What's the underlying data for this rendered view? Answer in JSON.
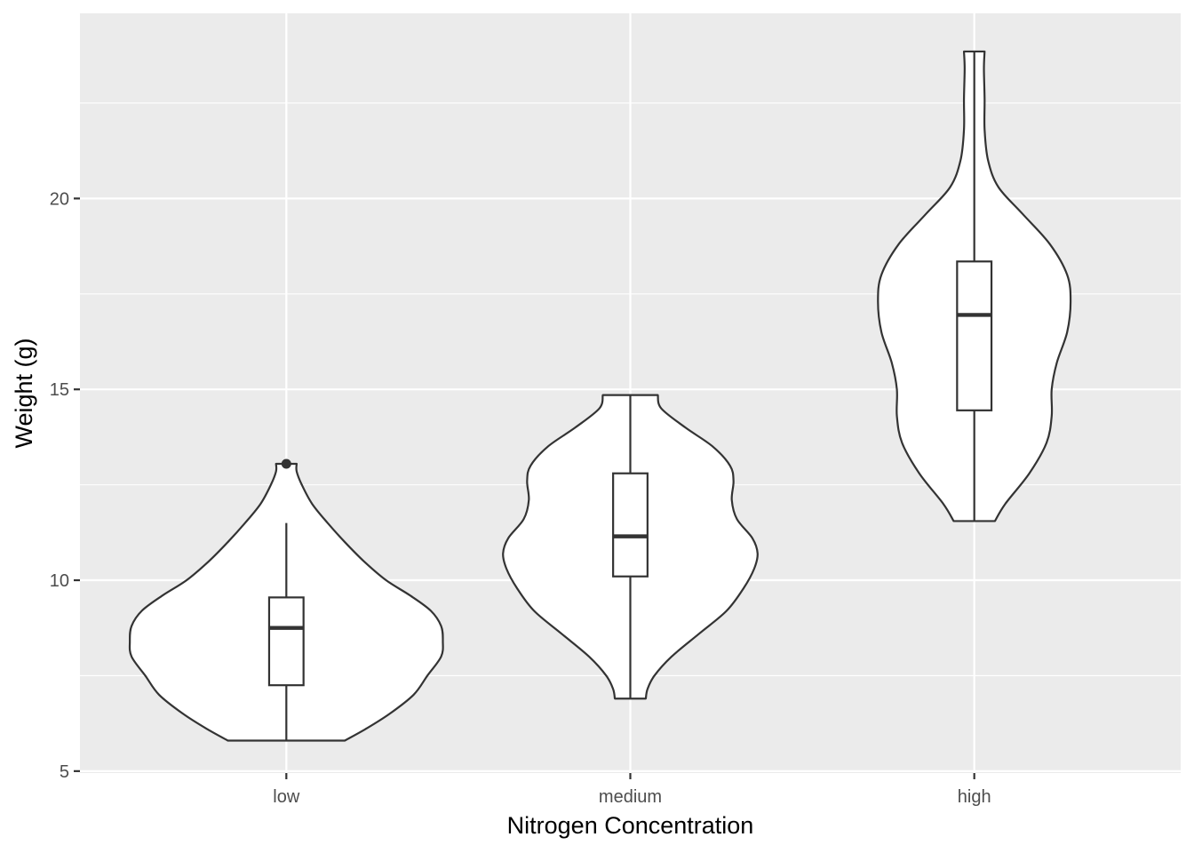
{
  "chart_data": {
    "type": "violin",
    "title": "",
    "xlabel": "Nitrogen Concentration",
    "ylabel": "Weight (g)",
    "categories": [
      "low",
      "medium",
      "high"
    ],
    "ylim": [
      4.95,
      24.85
    ],
    "yticks": [
      5,
      10,
      15,
      20
    ],
    "grid": true,
    "legend": "none",
    "colors": {
      "panel": "#ebebeb",
      "grid": "#ffffff",
      "outline": "#333333",
      "fill": "#ffffff",
      "tick_text": "#4d4d4d"
    },
    "series": [
      {
        "category": "low",
        "min": 5.8,
        "max": 13.05,
        "q1": 7.25,
        "median": 8.75,
        "q3": 9.55,
        "whisker_low": 5.8,
        "whisker_high": 11.5,
        "outliers": [
          13.05
        ],
        "violin_max_halfwidth": 0.45,
        "density_profile": [
          [
            5.8,
            0.17
          ],
          [
            6.1,
            0.23
          ],
          [
            6.5,
            0.3
          ],
          [
            7.0,
            0.37
          ],
          [
            7.5,
            0.41
          ],
          [
            8.0,
            0.45
          ],
          [
            8.4,
            0.455
          ],
          [
            8.8,
            0.45
          ],
          [
            9.2,
            0.42
          ],
          [
            9.6,
            0.36
          ],
          [
            10.0,
            0.29
          ],
          [
            10.5,
            0.225
          ],
          [
            11.0,
            0.17
          ],
          [
            11.5,
            0.12
          ],
          [
            12.0,
            0.075
          ],
          [
            12.5,
            0.045
          ],
          [
            12.85,
            0.03
          ],
          [
            13.05,
            0.03
          ]
        ]
      },
      {
        "category": "medium",
        "min": 6.9,
        "max": 14.85,
        "q1": 10.1,
        "median": 11.15,
        "q3": 12.8,
        "whisker_low": 6.9,
        "whisker_high": 14.85,
        "outliers": [],
        "violin_max_halfwidth": 0.37,
        "density_profile": [
          [
            6.9,
            0.045
          ],
          [
            7.15,
            0.05
          ],
          [
            7.5,
            0.07
          ],
          [
            8.0,
            0.12
          ],
          [
            8.6,
            0.2
          ],
          [
            9.2,
            0.28
          ],
          [
            9.8,
            0.33
          ],
          [
            10.3,
            0.36
          ],
          [
            10.7,
            0.37
          ],
          [
            11.1,
            0.355
          ],
          [
            11.6,
            0.31
          ],
          [
            12.1,
            0.295
          ],
          [
            12.6,
            0.3
          ],
          [
            13.0,
            0.29
          ],
          [
            13.5,
            0.24
          ],
          [
            14.0,
            0.16
          ],
          [
            14.5,
            0.09
          ],
          [
            14.85,
            0.08
          ]
        ]
      },
      {
        "category": "high",
        "min": 11.55,
        "max": 23.85,
        "q1": 14.45,
        "median": 16.95,
        "q3": 18.35,
        "whisker_low": 11.55,
        "whisker_high": 23.85,
        "outliers": [],
        "violin_max_halfwidth": 0.28,
        "density_profile": [
          [
            11.55,
            0.06
          ],
          [
            12.0,
            0.09
          ],
          [
            12.8,
            0.16
          ],
          [
            13.6,
            0.21
          ],
          [
            14.3,
            0.225
          ],
          [
            15.0,
            0.225
          ],
          [
            15.7,
            0.24
          ],
          [
            16.5,
            0.27
          ],
          [
            17.3,
            0.28
          ],
          [
            18.0,
            0.27
          ],
          [
            18.8,
            0.22
          ],
          [
            19.6,
            0.14
          ],
          [
            20.3,
            0.07
          ],
          [
            21.0,
            0.04
          ],
          [
            21.8,
            0.03
          ],
          [
            22.6,
            0.03
          ],
          [
            23.4,
            0.028
          ],
          [
            23.85,
            0.03
          ]
        ]
      }
    ]
  }
}
